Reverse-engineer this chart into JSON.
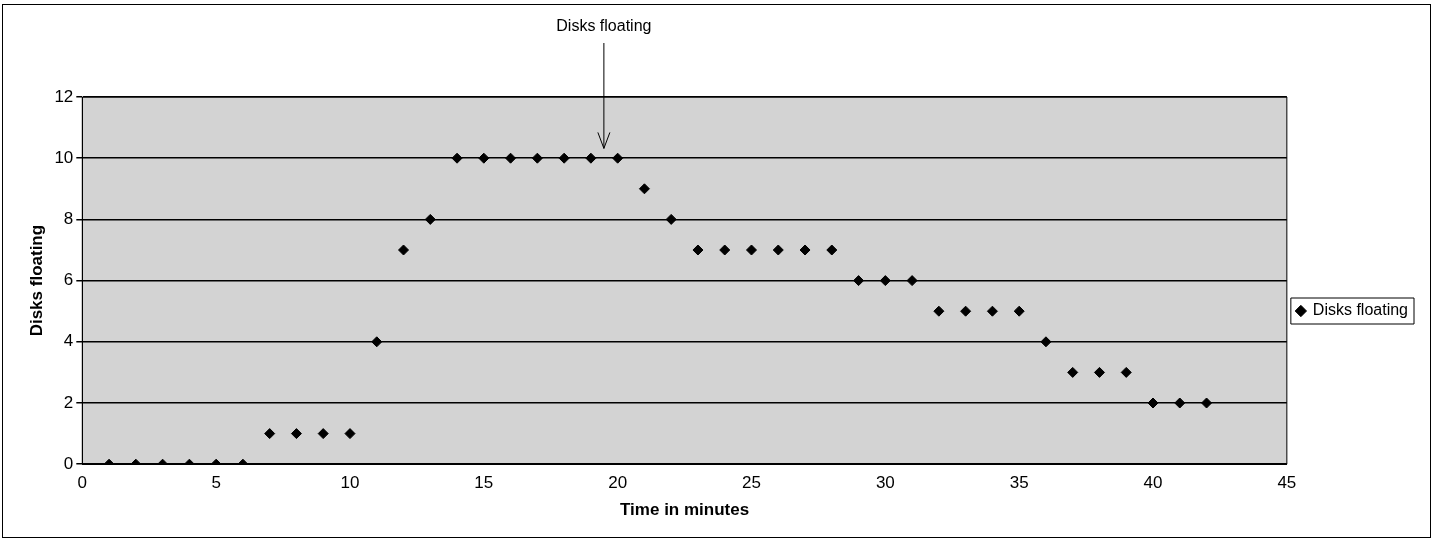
{
  "chart_data": {
    "type": "scatter",
    "xlabel": "Time in minutes",
    "ylabel": "Disks floating",
    "x": [
      1,
      2,
      3,
      4,
      5,
      6,
      7,
      8,
      9,
      10,
      11,
      12,
      13,
      14,
      15,
      16,
      17,
      18,
      19,
      20,
      21,
      22,
      23,
      24,
      25,
      26,
      27,
      28,
      29,
      30,
      31,
      32,
      33,
      34,
      35,
      36,
      37,
      38,
      39,
      40,
      41,
      42
    ],
    "series": [
      {
        "name": "Disks floating",
        "color": "#000000",
        "values": [
          0,
          0,
          0,
          0,
          0,
          0,
          1,
          1,
          1,
          1,
          4,
          7,
          8,
          10,
          10,
          10,
          10,
          10,
          10,
          10,
          9,
          8,
          7,
          7,
          7,
          7,
          7,
          7,
          6,
          6,
          6,
          5,
          5,
          5,
          5,
          4,
          3,
          3,
          3,
          2,
          2,
          2
        ]
      }
    ],
    "xlim": [
      0,
      45
    ],
    "xticks": [
      0,
      5,
      10,
      15,
      20,
      25,
      30,
      35,
      40,
      45
    ],
    "ylim": [
      0,
      12
    ],
    "yticks": [
      0,
      2,
      4,
      6,
      8,
      10,
      12
    ],
    "grid": "y",
    "legend": "right",
    "marker": "diamond",
    "annotations": [
      "Disks floating"
    ]
  }
}
